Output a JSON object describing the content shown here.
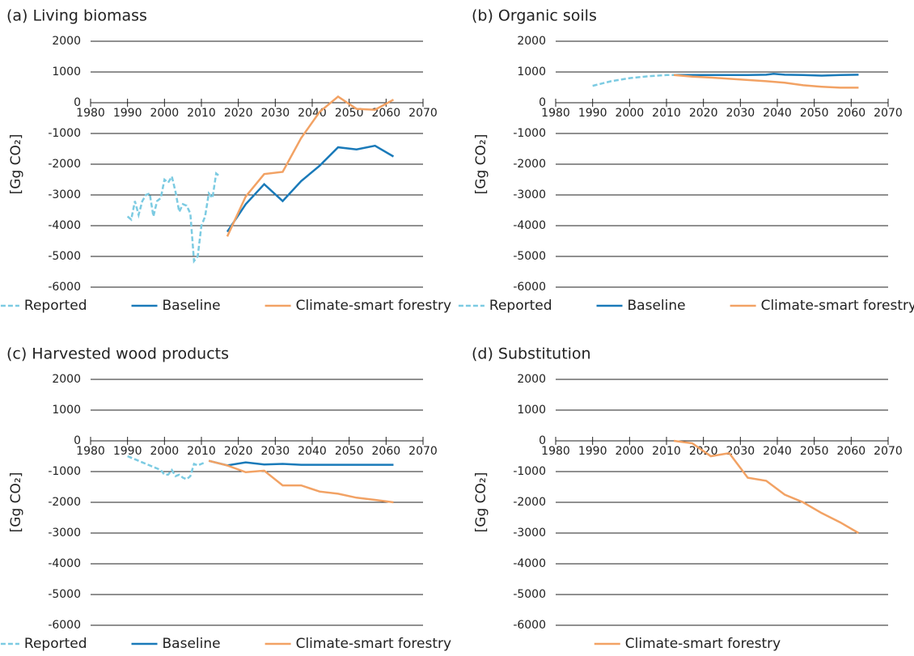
{
  "chart_data": [
    {
      "type": "line",
      "title": "(a) Living biomass",
      "ylabel": "[Gg CO₂]",
      "xlim": [
        1980,
        2070
      ],
      "xticks": [
        1980,
        1990,
        2000,
        2010,
        2020,
        2030,
        2040,
        2050,
        2060,
        2070
      ],
      "ylim": [
        -6000,
        2000
      ],
      "yticks": [
        -6000,
        -5000,
        -4000,
        -3000,
        -2000,
        -1000,
        0,
        1000,
        2000
      ],
      "grid": true,
      "legend": "bottom",
      "series": [
        {
          "name": "Reported",
          "color": "#7ccbe2",
          "style": "dashed",
          "x": [
            1990,
            1991,
            1992,
            1993,
            1994,
            1995,
            1996,
            1997,
            1998,
            1999,
            2000,
            2001,
            2002,
            2003,
            2004,
            2005,
            2006,
            2007,
            2008,
            2009,
            2010,
            2011,
            2012,
            2013,
            2014,
            2015
          ],
          "values": [
            -3700,
            -3800,
            -3200,
            -3650,
            -3200,
            -3000,
            -2950,
            -3700,
            -3200,
            -3100,
            -2500,
            -2600,
            -2400,
            -2900,
            -3550,
            -3300,
            -3350,
            -3600,
            -5150,
            -5000,
            -4000,
            -3700,
            -2950,
            -3100,
            -2300,
            -2400
          ]
        },
        {
          "name": "Baseline",
          "color": "#1a7ab9",
          "style": "solid",
          "x": [
            2017,
            2022,
            2027,
            2032,
            2037,
            2042,
            2047,
            2052,
            2057,
            2062
          ],
          "values": [
            -4200,
            -3300,
            -2650,
            -3200,
            -2550,
            -2050,
            -1450,
            -1520,
            -1400,
            -1750
          ]
        },
        {
          "name": "Climate-smart forestry",
          "color": "#f2a264",
          "style": "solid",
          "x": [
            2017,
            2022,
            2027,
            2032,
            2037,
            2042,
            2047,
            2052,
            2057,
            2062
          ],
          "values": [
            -4350,
            -3050,
            -2320,
            -2250,
            -1150,
            -300,
            200,
            -200,
            -230,
            100
          ]
        }
      ]
    },
    {
      "type": "line",
      "title": "(b) Organic soils",
      "ylabel": "[Gg CO₂]",
      "xlim": [
        1980,
        2070
      ],
      "xticks": [
        1980,
        1990,
        2000,
        2010,
        2020,
        2030,
        2040,
        2050,
        2060,
        2070
      ],
      "ylim": [
        -6000,
        2000
      ],
      "yticks": [
        -6000,
        -5000,
        -4000,
        -3000,
        -2000,
        -1000,
        0,
        1000,
        2000
      ],
      "grid": true,
      "legend": "bottom",
      "series": [
        {
          "name": "Reported",
          "color": "#7ccbe2",
          "style": "dashed",
          "x": [
            1990,
            1995,
            2000,
            2005,
            2010,
            2012
          ],
          "values": [
            550,
            700,
            800,
            860,
            900,
            900
          ]
        },
        {
          "name": "Baseline",
          "color": "#1a7ab9",
          "style": "solid",
          "x": [
            2012,
            2017,
            2022,
            2027,
            2032,
            2037,
            2039,
            2042,
            2047,
            2052,
            2057,
            2062
          ],
          "values": [
            900,
            900,
            900,
            900,
            900,
            910,
            940,
            910,
            900,
            880,
            900,
            910
          ]
        },
        {
          "name": "Climate-smart forestry",
          "color": "#f2a264",
          "style": "solid",
          "x": [
            2012,
            2017,
            2022,
            2027,
            2032,
            2037,
            2042,
            2047,
            2052,
            2057,
            2062
          ],
          "values": [
            900,
            850,
            820,
            780,
            740,
            700,
            650,
            570,
            520,
            490,
            490
          ]
        }
      ]
    },
    {
      "type": "line",
      "title": "(c) Harvested wood products",
      "ylabel": "[Gg CO₂]",
      "xlim": [
        1980,
        2070
      ],
      "xticks": [
        1980,
        1990,
        2000,
        2010,
        2020,
        2030,
        2040,
        2050,
        2060,
        2070
      ],
      "ylim": [
        -6000,
        2000
      ],
      "yticks": [
        -6000,
        -5000,
        -4000,
        -3000,
        -2000,
        -1000,
        0,
        1000,
        2000
      ],
      "grid": true,
      "legend": "bottom",
      "series": [
        {
          "name": "Reported",
          "color": "#7ccbe2",
          "style": "dashed",
          "x": [
            1990,
            1993,
            1996,
            1999,
            2000,
            2001,
            2002,
            2003,
            2004,
            2005,
            2006,
            2007,
            2008,
            2009,
            2010,
            2011
          ],
          "values": [
            -500,
            -650,
            -800,
            -950,
            -1100,
            -1100,
            -950,
            -1150,
            -1100,
            -1200,
            -1250,
            -1150,
            -750,
            -800,
            -750,
            -700
          ]
        },
        {
          "name": "Baseline",
          "color": "#1a7ab9",
          "style": "solid",
          "x": [
            2012,
            2017,
            2022,
            2027,
            2032,
            2037,
            2042,
            2047,
            2052,
            2057,
            2062
          ],
          "values": [
            -650,
            -800,
            -700,
            -770,
            -750,
            -780,
            -780,
            -780,
            -780,
            -780,
            -780
          ]
        },
        {
          "name": "Climate-smart forestry",
          "color": "#f2a264",
          "style": "solid",
          "x": [
            2012,
            2017,
            2022,
            2027,
            2032,
            2037,
            2042,
            2047,
            2052,
            2057,
            2062
          ],
          "values": [
            -650,
            -800,
            -1020,
            -970,
            -1450,
            -1450,
            -1650,
            -1720,
            -1850,
            -1920,
            -2000
          ]
        }
      ]
    },
    {
      "type": "line",
      "title": "(d) Substitution",
      "ylabel": "[Gg CO₂]",
      "xlim": [
        1980,
        2070
      ],
      "xticks": [
        1980,
        1990,
        2000,
        2010,
        2020,
        2030,
        2040,
        2050,
        2060,
        2070
      ],
      "ylim": [
        -6000,
        2000
      ],
      "yticks": [
        -6000,
        -5000,
        -4000,
        -3000,
        -2000,
        -1000,
        0,
        1000,
        2000
      ],
      "grid": true,
      "legend": "bottom",
      "series": [
        {
          "name": "Climate-smart forestry",
          "color": "#f2a264",
          "style": "solid",
          "x": [
            2012,
            2017,
            2022,
            2027,
            2032,
            2037,
            2042,
            2047,
            2052,
            2057,
            2062
          ],
          "values": [
            0,
            -80,
            -500,
            -400,
            -1200,
            -1300,
            -1750,
            -2000,
            -2350,
            -2650,
            -3000
          ]
        }
      ]
    }
  ]
}
